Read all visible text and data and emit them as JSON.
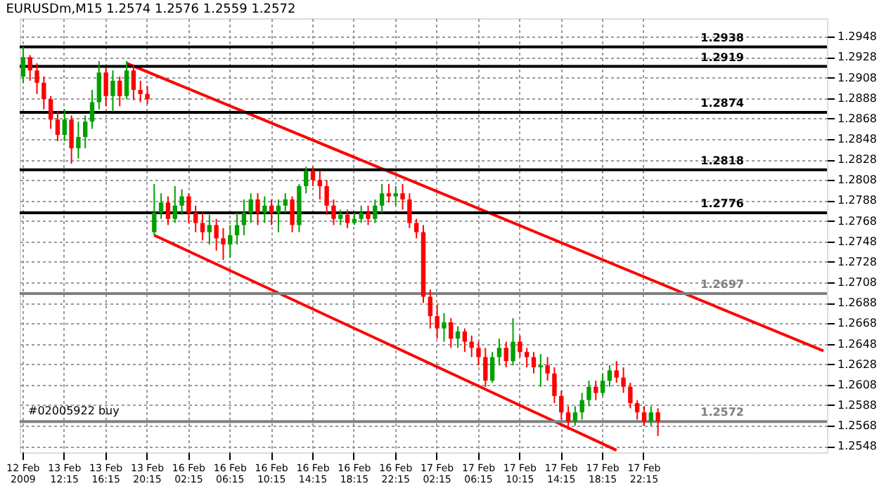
{
  "chart_data": {
    "type": "candlestick",
    "title": "EURUSDm,M15 1.2574 1.2576 1.2559 1.2572",
    "categories": [
      "12 Feb 2009",
      null,
      null,
      null,
      null,
      null,
      "13 Feb 12:15",
      null,
      null,
      null,
      null,
      null,
      "13 Feb 16:15",
      null,
      null,
      null,
      null,
      null,
      "13 Feb 20:15",
      null,
      null,
      null,
      null,
      null,
      "16 Feb 02:15",
      null,
      null,
      null,
      null,
      null,
      "16 Feb 06:15",
      null,
      null,
      null,
      null,
      null,
      "16 Feb 10:15",
      null,
      null,
      null,
      null,
      null,
      "16 Feb 14:15",
      null,
      null,
      null,
      null,
      null,
      "16 Feb 18:15",
      null,
      null,
      null,
      null,
      null,
      "16 Feb 22:15",
      null,
      null,
      null,
      null,
      null,
      "17 Feb 02:15",
      null,
      null,
      null,
      null,
      null,
      "17 Feb 06:15",
      null,
      null,
      null,
      null,
      null,
      "17 Feb 10:15",
      null,
      null,
      null,
      null,
      null,
      "17 Feb 14:15",
      null,
      null,
      null,
      null,
      null,
      "17 Feb 18:15",
      null,
      null,
      null,
      null,
      null,
      "17 Feb 22:15",
      null,
      null,
      null,
      null,
      null,
      null,
      null,
      null,
      null,
      null,
      null,
      null,
      null,
      null,
      null,
      null,
      null,
      null,
      null,
      null,
      null,
      null,
      null,
      null,
      null,
      null
    ],
    "ohlc": [
      [
        1.2909,
        1.2938,
        1.2903,
        1.2928
      ],
      [
        1.2928,
        1.293,
        1.2905,
        1.2915
      ],
      [
        1.2915,
        1.2922,
        1.2892,
        1.2903
      ],
      [
        1.2903,
        1.2909,
        1.2877,
        1.2887
      ],
      [
        1.2887,
        1.289,
        1.2858,
        1.2867
      ],
      [
        1.2867,
        1.2875,
        1.2846,
        1.2852
      ],
      [
        1.2852,
        1.2877,
        1.2846,
        1.2867
      ],
      [
        1.2867,
        1.2871,
        1.2824,
        1.2839
      ],
      [
        1.2839,
        1.2865,
        1.2829,
        1.285
      ],
      [
        1.285,
        1.2871,
        1.2839,
        1.2865
      ],
      [
        1.2865,
        1.2896,
        1.2858,
        1.2884
      ],
      [
        1.2884,
        1.2924,
        1.2877,
        1.2913
      ],
      [
        1.2913,
        1.2918,
        1.288,
        1.289
      ],
      [
        1.289,
        1.2915,
        1.2875,
        1.2905
      ],
      [
        1.2905,
        1.2909,
        1.288,
        1.289
      ],
      [
        1.289,
        1.2924,
        1.2887,
        1.2915
      ],
      [
        1.2915,
        1.292,
        1.2886,
        1.2896
      ],
      [
        1.2896,
        1.2905,
        1.2884,
        1.2892
      ],
      [
        1.2892,
        1.29,
        1.2882,
        1.2887
      ],
      [
        1.2757,
        1.2804,
        1.2754,
        1.2776
      ],
      [
        1.2776,
        1.2795,
        1.277,
        1.2786
      ],
      [
        1.2786,
        1.2792,
        1.2764,
        1.277
      ],
      [
        1.277,
        1.2802,
        1.2766,
        1.2783
      ],
      [
        1.2783,
        1.2799,
        1.2774,
        1.2792
      ],
      [
        1.2792,
        1.2795,
        1.2766,
        1.2776
      ],
      [
        1.2776,
        1.2783,
        1.2757,
        1.2766
      ],
      [
        1.2766,
        1.2776,
        1.2749,
        1.2757
      ],
      [
        1.2757,
        1.2774,
        1.2745,
        1.2764
      ],
      [
        1.2764,
        1.277,
        1.2739,
        1.2751
      ],
      [
        1.2751,
        1.2761,
        1.273,
        1.2745
      ],
      [
        1.2745,
        1.2764,
        1.2732,
        1.2754
      ],
      [
        1.2754,
        1.2776,
        1.2745,
        1.2764
      ],
      [
        1.2764,
        1.2789,
        1.2754,
        1.2776
      ],
      [
        1.2776,
        1.2795,
        1.2766,
        1.2789
      ],
      [
        1.2789,
        1.2795,
        1.2764,
        1.2776
      ],
      [
        1.2776,
        1.2792,
        1.2766,
        1.2783
      ],
      [
        1.2783,
        1.2789,
        1.2764,
        1.2776
      ],
      [
        1.2776,
        1.2789,
        1.2757,
        1.2783
      ],
      [
        1.2783,
        1.2795,
        1.2776,
        1.2789
      ],
      [
        1.2789,
        1.2792,
        1.2757,
        1.2764
      ],
      [
        1.2764,
        1.2804,
        1.2757,
        1.2802
      ],
      [
        1.2802,
        1.2821,
        1.2795,
        1.2817
      ],
      [
        1.2817,
        1.2821,
        1.2802,
        1.2808
      ],
      [
        1.2808,
        1.2817,
        1.2789,
        1.2802
      ],
      [
        1.2802,
        1.2808,
        1.2774,
        1.2783
      ],
      [
        1.2783,
        1.2789,
        1.2764,
        1.277
      ],
      [
        1.277,
        1.2779,
        1.2764,
        1.2774
      ],
      [
        1.2774,
        1.2779,
        1.2761,
        1.2766
      ],
      [
        1.2766,
        1.2776,
        1.2764,
        1.277
      ],
      [
        1.277,
        1.2783,
        1.2766,
        1.2776
      ],
      [
        1.2776,
        1.2783,
        1.2764,
        1.277
      ],
      [
        1.277,
        1.2789,
        1.2766,
        1.2783
      ],
      [
        1.2783,
        1.2804,
        1.2776,
        1.2795
      ],
      [
        1.2795,
        1.2804,
        1.2786,
        1.2792
      ],
      [
        1.2792,
        1.2802,
        1.2783,
        1.2795
      ],
      [
        1.2795,
        1.2804,
        1.2779,
        1.2789
      ],
      [
        1.2789,
        1.2795,
        1.2761,
        1.2766
      ],
      [
        1.2766,
        1.277,
        1.2751,
        1.2757
      ],
      [
        1.2757,
        1.2764,
        1.2688,
        1.2694
      ],
      [
        1.2694,
        1.2701,
        1.2663,
        1.2675
      ],
      [
        1.2675,
        1.2686,
        1.2653,
        1.2663
      ],
      [
        1.2663,
        1.2678,
        1.265,
        1.2669
      ],
      [
        1.2669,
        1.2673,
        1.2644,
        1.2653
      ],
      [
        1.2653,
        1.2665,
        1.2644,
        1.266
      ],
      [
        1.266,
        1.2663,
        1.264,
        1.265
      ],
      [
        1.265,
        1.2656,
        1.2635,
        1.2644
      ],
      [
        1.2644,
        1.265,
        1.2627,
        1.2635
      ],
      [
        1.2635,
        1.2644,
        1.2606,
        1.2612
      ],
      [
        1.2612,
        1.264,
        1.261,
        1.2635
      ],
      [
        1.2635,
        1.2653,
        1.2627,
        1.2644
      ],
      [
        1.2644,
        1.265,
        1.2625,
        1.2631
      ],
      [
        1.2631,
        1.2673,
        1.2627,
        1.265
      ],
      [
        1.265,
        1.2656,
        1.2635,
        1.264
      ],
      [
        1.264,
        1.2644,
        1.2625,
        1.2635
      ],
      [
        1.2635,
        1.264,
        1.2619,
        1.2625
      ],
      [
        1.2625,
        1.2638,
        1.2606,
        1.2627
      ],
      [
        1.2627,
        1.2635,
        1.2612,
        1.2619
      ],
      [
        1.2619,
        1.2625,
        1.259,
        1.2597
      ],
      [
        1.2597,
        1.2602,
        1.2574,
        1.2581
      ],
      [
        1.2581,
        1.2587,
        1.2564,
        1.2572
      ],
      [
        1.2572,
        1.2587,
        1.2568,
        1.2581
      ],
      [
        1.2581,
        1.26,
        1.2574,
        1.2593
      ],
      [
        1.2593,
        1.2612,
        1.2587,
        1.2606
      ],
      [
        1.2606,
        1.2612,
        1.2593,
        1.26
      ],
      [
        1.26,
        1.2619,
        1.2597,
        1.2612
      ],
      [
        1.2612,
        1.2627,
        1.2606,
        1.2622
      ],
      [
        1.2622,
        1.2631,
        1.261,
        1.2615
      ],
      [
        1.2615,
        1.2625,
        1.26,
        1.2606
      ],
      [
        1.2606,
        1.261,
        1.2585,
        1.259
      ],
      [
        1.259,
        1.2593,
        1.2574,
        1.2581
      ],
      [
        1.2581,
        1.2587,
        1.2568,
        1.2572
      ],
      [
        1.2572,
        1.2587,
        1.2568,
        1.2581
      ],
      [
        1.2581,
        1.2585,
        1.2558,
        1.2572
      ],
      null,
      null,
      null,
      null,
      null,
      null,
      null,
      null,
      null,
      null,
      null,
      null,
      null,
      null,
      null,
      null,
      null,
      null,
      null,
      null,
      null,
      null,
      null,
      null
    ],
    "colors": [
      "#00a000",
      "#ff0000",
      "#ff0000",
      "#ff0000",
      "#ff0000",
      "#ff0000",
      "#00a000",
      "#ff0000",
      "#00a000",
      "#00a000",
      "#00a000",
      "#00a000",
      "#ff0000",
      "#00a000",
      "#ff0000",
      "#00a000",
      "#ff0000",
      "#ff0000",
      "#ff0000",
      "#00a000",
      "#00a000",
      "#ff0000",
      "#00a000",
      "#00a000",
      "#ff0000",
      "#ff0000",
      "#ff0000",
      "#00a000",
      "#ff0000",
      "#ff0000",
      "#00a000",
      "#00a000",
      "#00a000",
      "#00a000",
      "#ff0000",
      "#00a000",
      "#ff0000",
      "#00a000",
      "#00a000",
      "#ff0000",
      "#00a000",
      "#00a000",
      "#ff0000",
      "#ff0000",
      "#ff0000",
      "#ff0000",
      "#00a000",
      "#ff0000",
      "#00a000",
      "#00a000",
      "#ff0000",
      "#00a000",
      "#00a000",
      "#ff0000",
      "#00a000",
      "#ff0000",
      "#ff0000",
      "#ff0000",
      "#ff0000",
      "#ff0000",
      "#ff0000",
      "#00a000",
      "#ff0000",
      "#00a000",
      "#ff0000",
      "#ff0000",
      "#ff0000",
      "#ff0000",
      "#00a000",
      "#00a000",
      "#ff0000",
      "#00a000",
      "#ff0000",
      "#ff0000",
      "#ff0000",
      "#00a000",
      "#ff0000",
      "#ff0000",
      "#ff0000",
      "#ff0000",
      "#00a000",
      "#00a000",
      "#00a000",
      "#ff0000",
      "#00a000",
      "#00a000",
      "#ff0000",
      "#ff0000",
      "#ff0000",
      "#ff0000",
      "#ff0000",
      "#00a000",
      "#ff0000",
      null,
      null,
      null,
      null,
      null,
      null,
      null,
      null,
      null,
      null,
      null,
      null,
      null,
      null,
      null,
      null,
      null,
      null,
      null,
      null,
      null,
      null,
      null,
      null
    ],
    "series": [
      {
        "type": "line",
        "color": "#ff0000",
        "values": [
          null,
          null,
          null,
          null,
          null,
          null,
          null,
          null,
          null,
          null,
          null,
          null,
          null,
          null,
          null,
          1.2922,
          null,
          null,
          null,
          null,
          null,
          null,
          null,
          null,
          null,
          null,
          null,
          null,
          null,
          null,
          null,
          null,
          null,
          null,
          null,
          null,
          null,
          null,
          null,
          null,
          null,
          null,
          null,
          null,
          null,
          null,
          null,
          null,
          null,
          null,
          null,
          null,
          null,
          null,
          null,
          null,
          null,
          null,
          null,
          null,
          null,
          null,
          null,
          null,
          null,
          null,
          null,
          null,
          null,
          null,
          null,
          null,
          null,
          null,
          null,
          null,
          null,
          null,
          null,
          null,
          null,
          null,
          null,
          null,
          null,
          null,
          null,
          null,
          null,
          null,
          null,
          null,
          null,
          null,
          null,
          null,
          null,
          null,
          null,
          null,
          null,
          null,
          null,
          null,
          null,
          null,
          null,
          null,
          null,
          null,
          null,
          null,
          null,
          null,
          null,
          null,
          1.2641
        ]
      },
      {
        "type": "line",
        "color": "#ff0000",
        "values": [
          null,
          null,
          null,
          null,
          null,
          null,
          null,
          null,
          null,
          null,
          null,
          null,
          null,
          null,
          null,
          null,
          null,
          null,
          null,
          1.2754,
          null,
          null,
          null,
          null,
          null,
          null,
          null,
          null,
          null,
          null,
          null,
          null,
          null,
          null,
          null,
          null,
          null,
          null,
          null,
          null,
          null,
          null,
          null,
          null,
          null,
          null,
          null,
          null,
          null,
          null,
          null,
          null,
          null,
          null,
          null,
          null,
          null,
          null,
          null,
          null,
          null,
          null,
          null,
          null,
          null,
          null,
          null,
          null,
          null,
          null,
          null,
          null,
          null,
          null,
          null,
          null,
          null,
          null,
          null,
          null,
          null,
          null,
          null,
          null,
          null,
          null,
          1.2544,
          null,
          null,
          null,
          null,
          null,
          null,
          null,
          null,
          null,
          null,
          null,
          null,
          null,
          null,
          null,
          null,
          null,
          null,
          null,
          null,
          null,
          null,
          null,
          null,
          null,
          null,
          null,
          null,
          null,
          null
        ]
      }
    ],
    "ylim": [
      1.2542,
      1.2966
    ],
    "yticks": [
      1.2548,
      1.2568,
      1.2588,
      1.2608,
      1.2628,
      1.2648,
      1.2668,
      1.2688,
      1.2708,
      1.2728,
      1.2748,
      1.2768,
      1.2788,
      1.2808,
      1.2828,
      1.2848,
      1.2868,
      1.2888,
      1.2908,
      1.2928,
      1.2948
    ],
    "ref_lines": [
      {
        "axis": "y",
        "value": 1.2938,
        "label": "1.2938",
        "color": "#000000"
      },
      {
        "axis": "y",
        "value": 1.2919,
        "label": "1.2919",
        "color": "#000000"
      },
      {
        "axis": "y",
        "value": 1.2874,
        "label": "1.2874",
        "color": "#000000"
      },
      {
        "axis": "y",
        "value": 1.2818,
        "label": "1.2818",
        "color": "#000000"
      },
      {
        "axis": "y",
        "value": 1.2776,
        "label": "1.2776",
        "color": "#000000"
      },
      {
        "axis": "y",
        "value": 1.2697,
        "label": "1.2697",
        "color": "#808080"
      },
      {
        "axis": "y",
        "value": 1.2572,
        "label": "1.2572",
        "color": "#808080"
      }
    ],
    "annotations": [
      {
        "text": "#02005922 buy",
        "y": 1.2572
      }
    ],
    "grid": true
  }
}
